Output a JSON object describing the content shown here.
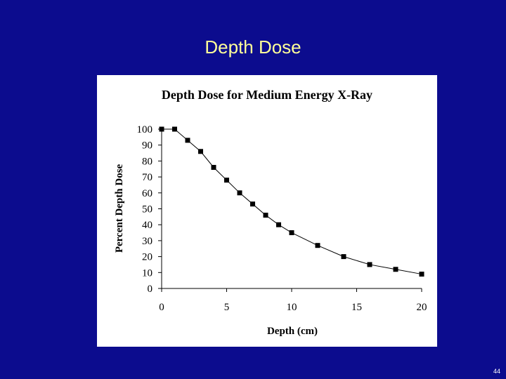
{
  "slide": {
    "title": "Depth Dose",
    "page_number": "44"
  },
  "colors": {
    "background": "#0c0c8e",
    "title": "#ffff99",
    "panel": "#ffffff",
    "marker": "#000000"
  },
  "chart_data": {
    "type": "line",
    "title": "Depth Dose for Medium Energy X-Ray",
    "xlabel": "Depth (cm)",
    "ylabel": "Percent Depth Dose",
    "xlim": [
      0,
      20
    ],
    "ylim": [
      0,
      100
    ],
    "xticks": [
      0,
      5,
      10,
      15,
      20
    ],
    "yticks": [
      0,
      10,
      20,
      30,
      40,
      50,
      60,
      70,
      80,
      90,
      100
    ],
    "grid": false,
    "legend": "none",
    "series": [
      {
        "x": [
          0,
          1,
          2,
          3,
          4,
          5,
          6,
          7,
          8,
          9,
          10,
          12,
          14,
          16,
          18,
          20
        ],
        "y": [
          100,
          100,
          93,
          86,
          76,
          68,
          60,
          53,
          46,
          40,
          35,
          27,
          20,
          15,
          12,
          9
        ]
      }
    ]
  }
}
